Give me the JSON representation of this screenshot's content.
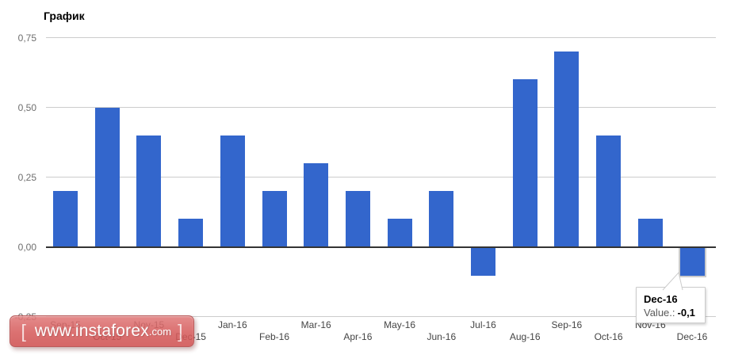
{
  "chart_data": {
    "type": "bar",
    "title": "График",
    "categories": [
      "Sep-15",
      "Oct-15",
      "Nov-15",
      "Dec-15",
      "Jan-16",
      "Feb-16",
      "Mar-16",
      "Apr-16",
      "May-16",
      "Jun-16",
      "Jul-16",
      "Aug-16",
      "Sep-16",
      "Oct-16",
      "Nov-16",
      "Dec-16"
    ],
    "values": [
      0.2,
      0.5,
      0.4,
      0.1,
      0.4,
      0.2,
      0.3,
      0.2,
      0.1,
      0.2,
      -0.1,
      0.6,
      0.7,
      0.4,
      0.1,
      -0.1
    ],
    "xlabel": "",
    "ylabel": "",
    "ylim": [
      -0.25,
      0.75
    ],
    "y_ticks": [
      {
        "label": "0,75",
        "value": 0.75
      },
      {
        "label": "0,50",
        "value": 0.5
      },
      {
        "label": "0,25",
        "value": 0.25
      },
      {
        "label": "0,00",
        "value": 0
      },
      {
        "label": "-0,25",
        "value": -0.25
      }
    ],
    "grid": true,
    "legend_position": "none",
    "bar_color": "#3366cc",
    "gridline_color": "#cccccc",
    "baseline_color": "#333333",
    "selected_index": 15,
    "selected_category": "Dec-16"
  },
  "tooltip": {
    "category": "Dec-16",
    "value_label": "Value.:",
    "value": "-0,1"
  },
  "watermark": {
    "open_bracket": "[",
    "site": "www.instaforex",
    "tld": ".com",
    "close_bracket": "]"
  }
}
